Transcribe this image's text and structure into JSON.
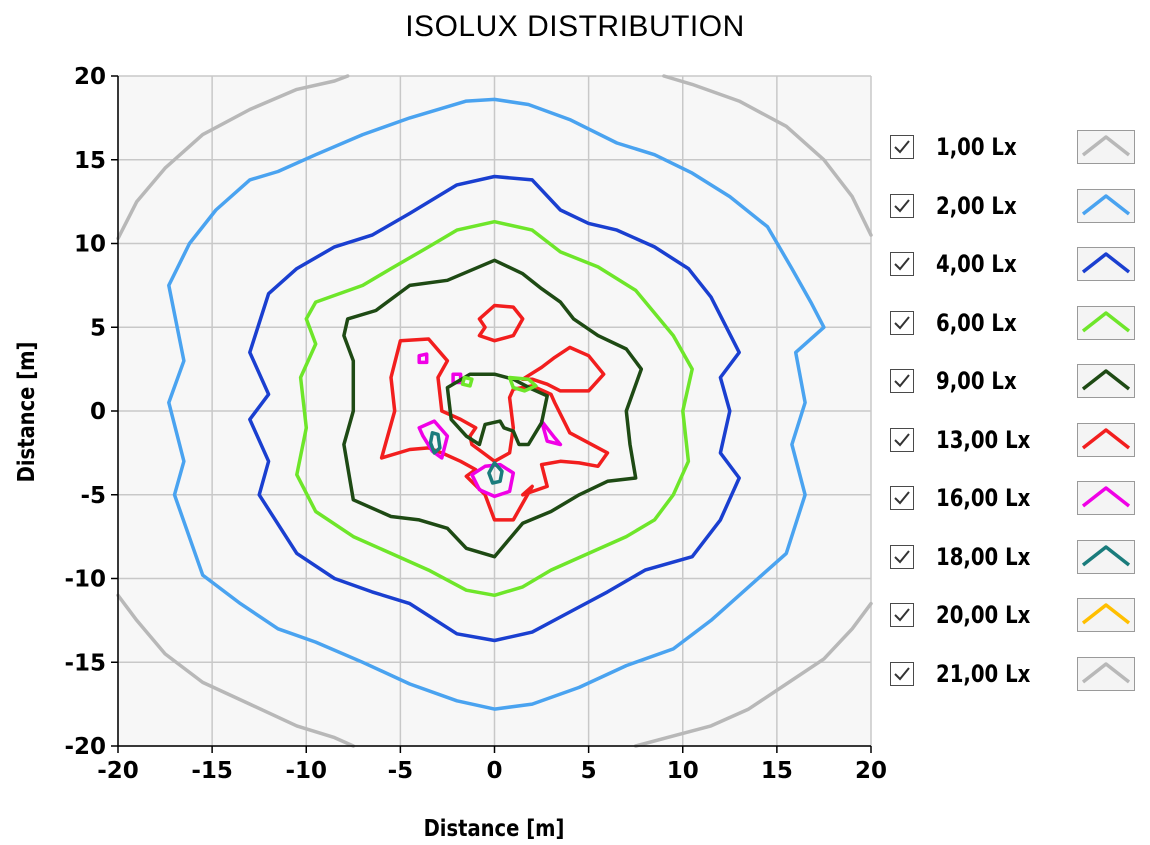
{
  "chart_data": {
    "type": "line",
    "title": "ISOLUX DISTRIBUTION",
    "xlabel": "Distance [m]",
    "ylabel": "Distance [m]",
    "xlim": [
      -20,
      20
    ],
    "ylim": [
      -20,
      20
    ],
    "xticks": [
      "-20",
      "-15",
      "-10",
      "-5",
      "0",
      "5",
      "10",
      "15",
      "20"
    ],
    "yticks": [
      "20",
      "15",
      "10",
      "5",
      "0",
      "-5",
      "-10",
      "-15",
      "-20"
    ],
    "grid": true,
    "legend_placement": "right",
    "legend": [
      {
        "label": "1,00 Lx",
        "color": "#b8b8b8",
        "checked": true
      },
      {
        "label": "2,00 Lx",
        "color": "#4aa3f0",
        "checked": true
      },
      {
        "label": "4,00 Lx",
        "color": "#1a3fd0",
        "checked": true
      },
      {
        "label": "6,00 Lx",
        "color": "#6ee62a",
        "checked": true
      },
      {
        "label": "9,00 Lx",
        "color": "#1e4a14",
        "checked": true
      },
      {
        "label": "13,00 Lx",
        "color": "#f21e1e",
        "checked": true
      },
      {
        "label": "16,00 Lx",
        "color": "#f000e6",
        "checked": true
      },
      {
        "label": "18,00 Lx",
        "color": "#1a7c7c",
        "checked": true
      },
      {
        "label": "20,00 Lx",
        "color": "#ffbf00",
        "checked": true
      },
      {
        "label": "21,00 Lx",
        "color": "#b8b8b8",
        "checked": true
      }
    ],
    "series": [
      {
        "name": "1,00 Lx",
        "color": "#b8b8b8",
        "open": true,
        "x": [
          -20,
          -19,
          -17.5,
          -15.5,
          -13,
          -10.5,
          -8.5,
          -7.8
        ],
        "y": [
          10.3,
          12.5,
          14.5,
          16.5,
          18,
          19.2,
          19.7,
          20
        ]
      },
      {
        "name": "1,00 Lx",
        "color": "#b8b8b8",
        "open": true,
        "x": [
          9,
          10.5,
          13,
          15.5,
          17.5,
          19,
          20
        ],
        "y": [
          20,
          19.5,
          18.5,
          17,
          15,
          12.8,
          10.5
        ]
      },
      {
        "name": "1,00 Lx",
        "color": "#b8b8b8",
        "open": true,
        "x": [
          -20,
          -19,
          -17.5,
          -15.5,
          -13,
          -10.5,
          -8.5,
          -7.5
        ],
        "y": [
          -11,
          -12.5,
          -14.5,
          -16.2,
          -17.5,
          -18.8,
          -19.5,
          -20
        ]
      },
      {
        "name": "1,00 Lx",
        "color": "#b8b8b8",
        "open": true,
        "x": [
          7.5,
          9.5,
          11.5,
          13.5,
          15.5,
          17.5,
          19,
          20
        ],
        "y": [
          -20,
          -19.4,
          -18.8,
          -17.8,
          -16.3,
          -14.8,
          -13,
          -11.5
        ]
      },
      {
        "name": "2,00 Lx",
        "color": "#4aa3f0",
        "open": false,
        "x": [
          -1.5,
          0,
          1.8,
          4,
          6.5,
          8.5,
          10.5,
          12.5,
          14.5,
          15.8,
          16.8,
          17.5,
          16,
          16.5,
          15.8,
          16.5,
          15.5,
          13.5,
          11.5,
          9.5,
          7,
          4.5,
          2,
          0,
          -2,
          -4.5,
          -7,
          -9.5,
          -11.5,
          -13.5,
          -15.5,
          -17,
          -16.5,
          -17.3,
          -16.5,
          -17.3,
          -16.2,
          -14.8,
          -13,
          -11.5,
          -9.5,
          -7,
          -4.5
        ],
        "y": [
          18.5,
          18.6,
          18.3,
          17.4,
          16,
          15.3,
          14.2,
          12.8,
          11,
          8.5,
          6.5,
          5,
          3.5,
          0.5,
          -2,
          -5,
          -8.5,
          -10.5,
          -12.5,
          -14.2,
          -15.2,
          -16.5,
          -17.5,
          -17.8,
          -17.3,
          -16.3,
          -15,
          -13.8,
          -13,
          -11.5,
          -9.8,
          -5,
          -3,
          0.5,
          3,
          7.5,
          10,
          12,
          13.8,
          14.3,
          15.3,
          16.5,
          17.5
        ]
      },
      {
        "name": "4,00 Lx",
        "color": "#1a3fd0",
        "open": false,
        "x": [
          -2,
          0,
          2,
          3.5,
          5,
          6.5,
          8.5,
          10.3,
          11.5,
          13,
          12,
          12.5,
          12,
          13,
          12,
          10.5,
          8,
          6,
          4,
          2,
          0,
          -2,
          -4.5,
          -6.5,
          -8.5,
          -10.5,
          -12.5,
          -12,
          -13,
          -12,
          -13,
          -12,
          -10.5,
          -8.5,
          -6.5,
          -4.5
        ],
        "y": [
          13.5,
          14,
          13.8,
          12,
          11.2,
          10.8,
          9.8,
          8.5,
          6.8,
          3.5,
          2,
          0,
          -2.5,
          -4,
          -6.5,
          -8.7,
          -9.5,
          -10.8,
          -12,
          -13.2,
          -13.7,
          -13.3,
          -11.5,
          -10.8,
          -10,
          -8.5,
          -5,
          -3,
          -0.5,
          1,
          3.5,
          7,
          8.5,
          9.8,
          10.5,
          11.8
        ]
      },
      {
        "name": "6,00 Lx",
        "color": "#6ee62a",
        "open": false,
        "x": [
          -2,
          0,
          2,
          3.5,
          5.5,
          7.5,
          9.5,
          10.5,
          10,
          10.3,
          9.5,
          8.5,
          7,
          5,
          3,
          1.5,
          0,
          -1.5,
          -3.5,
          -5.5,
          -7.5,
          -9.5,
          -10.5,
          -10,
          -10.3,
          -9.5,
          -10,
          -9.5,
          -7,
          -5.5,
          -3.5
        ],
        "y": [
          10.8,
          11.3,
          10.8,
          9.5,
          8.6,
          7.2,
          4.5,
          2.5,
          0,
          -3,
          -5,
          -6.5,
          -7.5,
          -8.5,
          -9.5,
          -10.5,
          -11,
          -10.7,
          -9.5,
          -8.5,
          -7.5,
          -6,
          -3.8,
          -1,
          2,
          4,
          5.5,
          6.5,
          7.5,
          8.5,
          9.8
        ]
      },
      {
        "name": "9,00 Lx",
        "color": "#1e4a14",
        "open": false,
        "x": [
          -2.5,
          0,
          1.5,
          2.5,
          3.5,
          4.2,
          5.5,
          7,
          7.8,
          7,
          7.2,
          7.5,
          6,
          4.5,
          3,
          1.5,
          0,
          -1.5,
          -2.5,
          -4,
          -5.5,
          -7.5,
          -8,
          -7.5,
          -7.5,
          -8,
          -7.8,
          -6.3,
          -4.5
        ],
        "y": [
          7.8,
          9,
          8.2,
          7.3,
          6.5,
          5.5,
          4.5,
          3.7,
          2.5,
          0,
          -2,
          -4,
          -4.2,
          -5,
          -6,
          -6.7,
          -8.7,
          -8.2,
          -7,
          -6.5,
          -6.3,
          -5.3,
          -2,
          0,
          3,
          4.5,
          5.5,
          6,
          7.5
        ]
      },
      {
        "name": "13,00 Lx",
        "color": "#f21e1e",
        "open": false,
        "x": [
          -5,
          -3.5,
          -2.5,
          -3,
          -2.8,
          -1.8,
          -1,
          -1.3,
          -1.2,
          -0.6,
          0,
          0.8,
          1,
          0.8,
          1,
          2,
          3,
          3.2,
          4,
          6,
          5.5,
          4.5,
          3.5,
          2.5,
          2.8,
          1.5,
          2,
          1,
          0,
          -0.5,
          -1.5,
          -1,
          -1.8,
          -2.8,
          -3.5,
          -4.5,
          -6,
          -5.3,
          -5.5,
          -5
        ],
        "y": [
          4.2,
          4.3,
          3,
          2,
          0,
          -0.5,
          -1,
          -1.5,
          -2,
          -2.5,
          -3,
          -2.5,
          -1,
          0.8,
          1.3,
          1.5,
          1,
          0.5,
          -1.3,
          -2.5,
          -3.3,
          -3.1,
          -3,
          -3.2,
          -4.5,
          -5,
          -4.5,
          -6.5,
          -6.5,
          -5,
          -3.9,
          -3.5,
          -3,
          -2.5,
          -2.2,
          -2.3,
          -2.8,
          0,
          2,
          4.2
        ]
      },
      {
        "name": "13,00 Lx",
        "color": "#f21e1e",
        "open": false,
        "x": [
          -0.8,
          0,
          1,
          1.5,
          1,
          0,
          -0.8,
          -0.5
        ],
        "y": [
          5.5,
          6.3,
          6.2,
          5.5,
          4.5,
          4.2,
          4.5,
          5
        ]
      },
      {
        "name": "13,00 Lx",
        "color": "#f21e1e",
        "open": false,
        "x": [
          1.5,
          2.5,
          3.2,
          4,
          5,
          5.8,
          5,
          3.5,
          2.8,
          2
        ],
        "y": [
          1.9,
          2.6,
          3.2,
          3.8,
          3.3,
          2.2,
          1.2,
          1.2,
          1.6,
          1.9
        ]
      },
      {
        "name": "16,00 Lx",
        "color": "#f000e6",
        "open": false,
        "x": [
          -4,
          -3.2,
          -2.5,
          -2.8,
          -3.3,
          -3.8
        ],
        "y": [
          -1,
          -0.6,
          -1.5,
          -2.8,
          -2.4,
          -1.5
        ]
      },
      {
        "name": "16,00 Lx",
        "color": "#f000e6",
        "open": false,
        "x": [
          -0.5,
          0.3,
          1,
          0.8,
          0,
          -0.8,
          -1.2
        ],
        "y": [
          -3.3,
          -3.2,
          -3.7,
          -4.8,
          -5.1,
          -4.7,
          -3.8
        ]
      },
      {
        "name": "16,00 Lx",
        "color": "#f000e6",
        "open": false,
        "x": [
          2.5,
          3.2,
          3.5,
          2.8
        ],
        "y": [
          -0.6,
          -1.6,
          -2,
          -1.8
        ]
      },
      {
        "name": "16,00 Lx",
        "color": "#f000e6",
        "open": false,
        "x": [
          -4,
          -3.6,
          -3.6,
          -4
        ],
        "y": [
          3.3,
          3.4,
          2.9,
          2.9
        ]
      },
      {
        "name": "16,00 Lx",
        "color": "#f000e6",
        "open": false,
        "x": [
          -2.2,
          -1.8,
          -1.8,
          -2.2
        ],
        "y": [
          2.2,
          2.2,
          1.7,
          1.7
        ]
      },
      {
        "name": "18,00 Lx",
        "color": "#1a7c7c",
        "open": false,
        "x": [
          -3.3,
          -3,
          -2.9,
          -3.2,
          -3.4
        ],
        "y": [
          -1.3,
          -1.4,
          -2.2,
          -2.5,
          -1.9
        ]
      },
      {
        "name": "18,00 Lx",
        "color": "#1a7c7c",
        "open": false,
        "x": [
          0,
          0.4,
          0.3,
          -0.1,
          -0.3
        ],
        "y": [
          -3.1,
          -3.6,
          -4.2,
          -4.3,
          -3.7
        ]
      },
      {
        "name": "9,00 Lx",
        "color": "#1e4a14",
        "open": false,
        "x": [
          -2.5,
          -1.3,
          0,
          1,
          2,
          2.8,
          2.5,
          1.8,
          1.3,
          1,
          0.5,
          0.3,
          -0.5,
          -0.8,
          -1.5,
          -2.3,
          -2.5
        ],
        "y": [
          1.4,
          2.2,
          2.2,
          1.9,
          1.3,
          0.9,
          -0.7,
          -2,
          -2,
          -1.2,
          -1,
          -0.6,
          -0.8,
          -2,
          -1.5,
          -0.5,
          1.4
        ]
      },
      {
        "name": "6,00 Lx",
        "color": "#6ee62a",
        "open": false,
        "x": [
          0.8,
          1.8,
          2.2,
          1.6,
          1,
          0.8
        ],
        "y": [
          2,
          1.9,
          1.5,
          1.2,
          1.4,
          2
        ]
      },
      {
        "name": "6,00 Lx",
        "color": "#6ee62a",
        "open": false,
        "x": [
          -1.6,
          -1.2,
          -1.3,
          -1.7
        ],
        "y": [
          2,
          1.9,
          1.5,
          1.6
        ]
      }
    ]
  }
}
